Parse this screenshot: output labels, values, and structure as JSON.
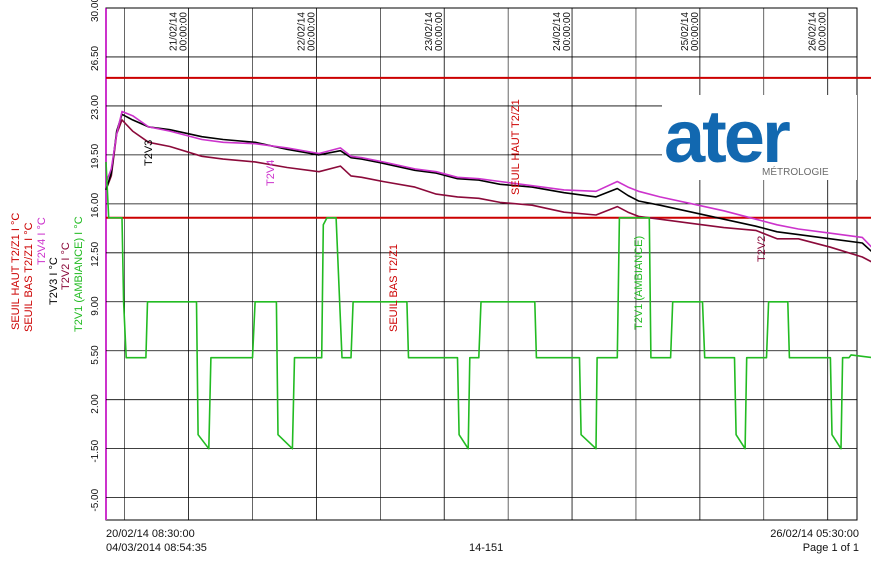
{
  "chart_data": {
    "type": "line",
    "y_ticks": [
      "30.00",
      "26.50",
      "23.00",
      "19.50",
      "16.00",
      "12.50",
      "9.00",
      "5.50",
      "2.00",
      "-1.50",
      "-5.00"
    ],
    "ylim": [
      -6.6,
      30.0
    ],
    "xlim": [
      "20/02/14 08:30:00",
      "26/02/14 05:30:00"
    ],
    "x_ticks": [
      {
        "date": "21/02/14",
        "time": "00:00:00"
      },
      {
        "date": "22/02/14",
        "time": "00:00:00"
      },
      {
        "date": "23/02/14",
        "time": "00:00:00"
      },
      {
        "date": "24/02/14",
        "time": "00:00:00"
      },
      {
        "date": "25/02/14",
        "time": "00:00:00"
      },
      {
        "date": "26/02/14",
        "time": "00:00:00"
      }
    ],
    "grid": true,
    "legend": [
      {
        "label": "SEUIL HAUT T2/Z1 I °C",
        "color": "#cc0000"
      },
      {
        "label": "SEUIL BAS T2/Z1 I °C",
        "color": "#cc0000"
      },
      {
        "label": "T2V4 I °C",
        "color": "#cc33cc"
      },
      {
        "label": "T2V3 I °C",
        "color": "#000000"
      },
      {
        "label": "T2V2 I °C",
        "color": "#8b0a3a"
      },
      {
        "label": "T2V1 (AMBIANCE) I °C",
        "color": "#22bb22"
      }
    ],
    "annotations": [
      {
        "text": "SEUIL HAUT T2/Z1",
        "color": "#cc0000"
      },
      {
        "text": "SEUIL BAS T2/Z1",
        "color": "#cc0000"
      },
      {
        "text": "T2V3",
        "color": "#000000"
      },
      {
        "text": "T2V4",
        "color": "#cc33cc"
      },
      {
        "text": "T2V2",
        "color": "#8b0a3a"
      },
      {
        "text": "T2V1 (AMBIANCE)",
        "color": "#22bb22"
      }
    ],
    "series": [
      {
        "name": "SEUIL HAUT T2/Z1",
        "color": "#cc0000",
        "x": [
          0,
          144
        ],
        "y": [
          25.0,
          25.0
        ]
      },
      {
        "name": "SEUIL BAS T2/Z1",
        "color": "#cc0000",
        "x": [
          0,
          144
        ],
        "y": [
          15.0,
          15.0
        ]
      },
      {
        "name": "T2V4",
        "color": "#cc33cc",
        "x": [
          0,
          1,
          2,
          3,
          5,
          8,
          12,
          18,
          22,
          28,
          34,
          40,
          44,
          46,
          48,
          52,
          58,
          62,
          66,
          70,
          74,
          80,
          86,
          92,
          96,
          98,
          100,
          104,
          110,
          116,
          122,
          126,
          130,
          136,
          142,
          144
        ],
        "y": [
          17.5,
          18.5,
          21.0,
          22.6,
          22.3,
          21.5,
          21.2,
          20.6,
          20.4,
          20.3,
          20.0,
          19.6,
          20.0,
          19.4,
          19.3,
          19.0,
          18.5,
          18.3,
          17.9,
          17.8,
          17.6,
          17.3,
          17.0,
          16.9,
          17.6,
          17.2,
          16.9,
          16.5,
          16.0,
          15.5,
          14.9,
          14.5,
          14.2,
          13.9,
          13.6,
          12.8
        ]
      },
      {
        "name": "T2V3",
        "color": "#000000",
        "x": [
          0,
          1,
          2,
          3,
          5,
          8,
          12,
          18,
          22,
          28,
          34,
          40,
          44,
          46,
          48,
          52,
          58,
          62,
          66,
          70,
          74,
          80,
          86,
          92,
          96,
          98,
          100,
          104,
          110,
          116,
          122,
          126,
          130,
          136,
          142,
          144
        ],
        "y": [
          17.0,
          18.2,
          21.2,
          22.4,
          22.0,
          21.5,
          21.3,
          20.8,
          20.6,
          20.4,
          19.9,
          19.5,
          19.8,
          19.3,
          19.2,
          18.9,
          18.4,
          18.2,
          17.8,
          17.7,
          17.4,
          17.2,
          16.8,
          16.5,
          17.1,
          16.6,
          16.2,
          15.9,
          15.4,
          14.9,
          14.4,
          14.0,
          13.8,
          13.5,
          13.2,
          12.5
        ]
      },
      {
        "name": "T2V2",
        "color": "#8b0a3a",
        "x": [
          0,
          1,
          2,
          3,
          5,
          8,
          12,
          18,
          22,
          28,
          34,
          40,
          44,
          46,
          48,
          52,
          58,
          62,
          66,
          70,
          74,
          80,
          86,
          92,
          96,
          98,
          100,
          104,
          110,
          116,
          122,
          126,
          130,
          136,
          142,
          144
        ],
        "y": [
          17.0,
          18.0,
          21.0,
          22.0,
          21.2,
          20.4,
          20.1,
          19.4,
          19.2,
          19.0,
          18.6,
          18.3,
          18.7,
          18.0,
          17.9,
          17.6,
          17.2,
          16.7,
          16.5,
          16.4,
          16.1,
          15.9,
          15.4,
          15.2,
          15.8,
          15.4,
          15.1,
          14.9,
          14.6,
          14.3,
          14.1,
          13.5,
          13.5,
          12.9,
          12.2,
          11.8
        ]
      },
      {
        "name": "T2V1 (AMBIANCE)",
        "color": "#22bb22",
        "x": [
          0,
          0.5,
          3,
          3.3,
          3.8,
          7.5,
          7.8,
          16.7,
          17,
          17.3,
          19.3,
          19.7,
          27.5,
          28,
          32,
          32.3,
          35,
          35.4,
          40.5,
          40.8,
          41.5,
          43.2,
          44.3,
          46,
          46.4,
          56.5,
          56.8,
          66,
          66.3,
          68,
          68.3,
          70,
          70.4,
          80.5,
          80.8,
          88.9,
          89.2,
          92,
          92.2,
          96,
          96.4,
          102,
          102.3,
          106,
          106.4,
          112,
          112.4,
          118,
          118.3,
          120,
          120.3,
          124,
          124.4,
          128,
          128.3,
          136,
          136.3,
          138,
          138.3,
          139.5,
          139.9,
          144
        ],
        "y": [
          19,
          15.0,
          15.0,
          9.0,
          5.0,
          5.0,
          9.0,
          9.0,
          9.0,
          -0.5,
          -1.5,
          5.0,
          5.0,
          9.0,
          9.0,
          -0.5,
          -1.5,
          5.0,
          5.0,
          14.5,
          15.0,
          15.0,
          5.0,
          5.0,
          9.0,
          9.0,
          5.0,
          5.0,
          -0.5,
          -1.5,
          5.0,
          5.0,
          9.0,
          9.0,
          5.0,
          5.0,
          -0.5,
          -1.5,
          5.0,
          5.0,
          15.0,
          15.0,
          5.0,
          5.0,
          9.0,
          9.0,
          5.0,
          5.0,
          -0.5,
          -1.5,
          5.0,
          5.0,
          9.0,
          9.0,
          5.0,
          5.0,
          -0.5,
          -1.5,
          5.0,
          5.0,
          5.2,
          5.0
        ]
      }
    ]
  },
  "footer": {
    "start_datetime": "20/02/14 08:30:00",
    "print_datetime": "04/03/2014  08:54:35",
    "center_code": "14-151",
    "end_datetime": "26/02/14 05:30:00",
    "page_label": "Page 1 of 1"
  },
  "logo": {
    "brand_text": "ater",
    "sub_text": "MÉTROLOGIE",
    "brand_color": "#1268b0"
  },
  "colors": {
    "grid": "#000000",
    "axis_spine": "#cc33cc"
  }
}
